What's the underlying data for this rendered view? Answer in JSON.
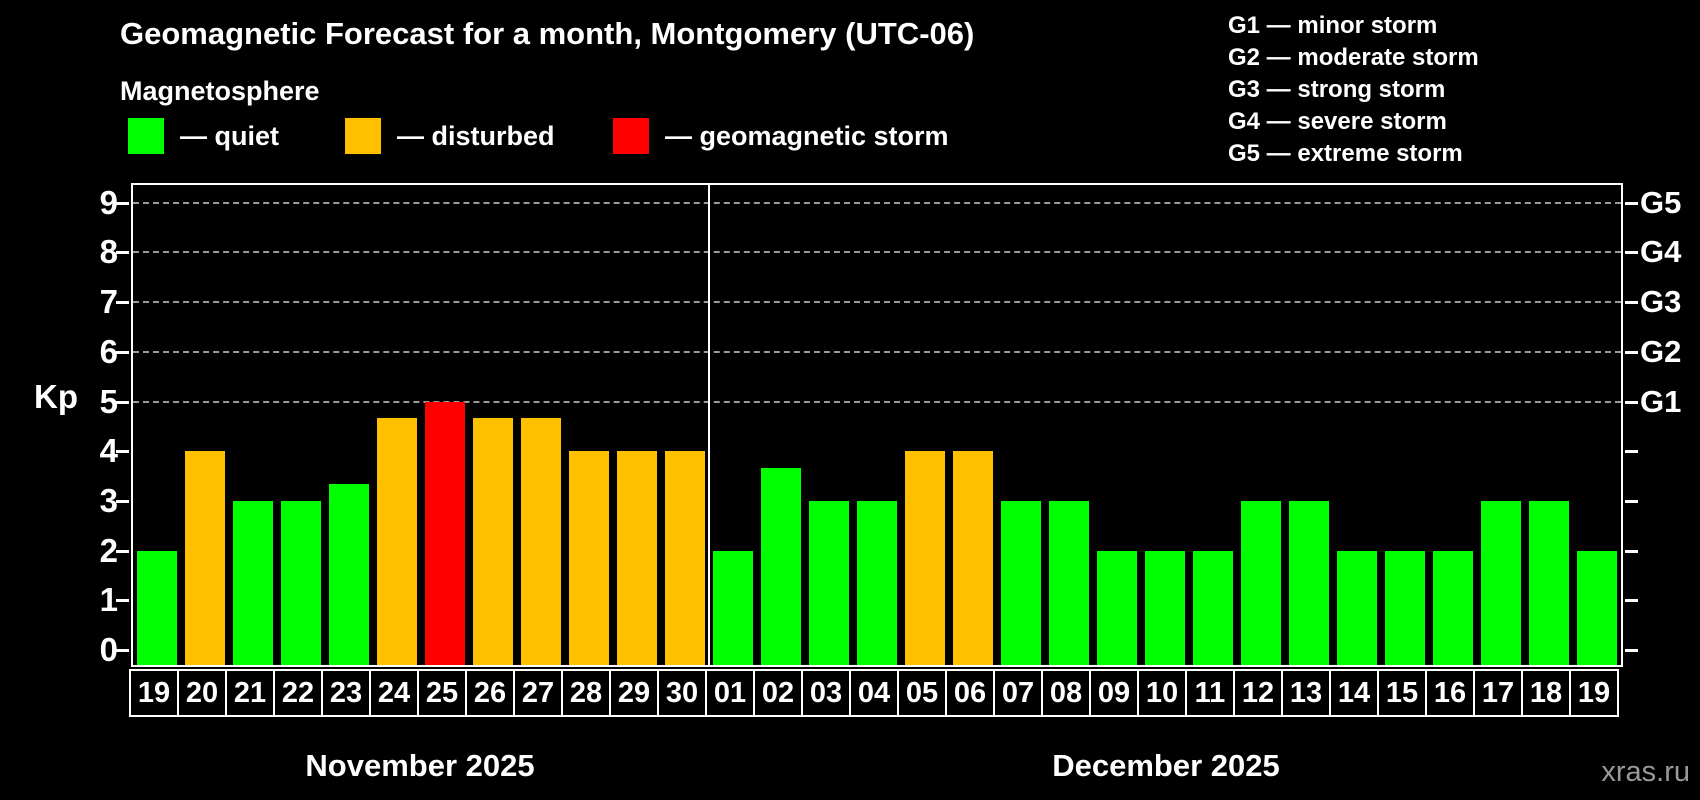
{
  "title": "Geomagnetic Forecast for a month, Montgomery (UTC-06)",
  "subtitle": "Magnetosphere",
  "legend": {
    "items": [
      {
        "label": "— quiet",
        "status": "quiet"
      },
      {
        "label": "— disturbed",
        "status": "disturbed"
      },
      {
        "label": "— geomagnetic storm",
        "status": "storm"
      }
    ]
  },
  "g_scale_legend": {
    "lines": [
      "G1 — minor storm",
      "G2 — moderate storm",
      "G3 — strong storm",
      "G4 — severe storm",
      "G5 — extreme storm"
    ]
  },
  "watermark": "xras.ru",
  "colors": {
    "quiet": "#00ff00",
    "disturbed": "#ffc000",
    "storm": "#ff0000",
    "axis": "#ffffff",
    "gridline": "#9a9a9a",
    "watermark": "#999999"
  },
  "chart_data": {
    "type": "bar",
    "ylabel": "Kp",
    "ylim": [
      -0.35,
      9.4
    ],
    "y_ticks": [
      0,
      1,
      2,
      3,
      4,
      5,
      6,
      7,
      8,
      9
    ],
    "gridlines_at": [
      5,
      6,
      7,
      8,
      9
    ],
    "right_axis_labels": [
      {
        "kp": 5,
        "label": "G1"
      },
      {
        "kp": 6,
        "label": "G2"
      },
      {
        "kp": 7,
        "label": "G3"
      },
      {
        "kp": 8,
        "label": "G4"
      },
      {
        "kp": 9,
        "label": "G5"
      }
    ],
    "months": [
      {
        "label": "November 2025",
        "days_count": 12
      },
      {
        "label": "December 2025",
        "days_count": 19
      }
    ],
    "days": [
      {
        "day": "19",
        "kp": 2.0,
        "status": "quiet"
      },
      {
        "day": "20",
        "kp": 4.0,
        "status": "disturbed"
      },
      {
        "day": "21",
        "kp": 3.0,
        "status": "quiet"
      },
      {
        "day": "22",
        "kp": 3.0,
        "status": "quiet"
      },
      {
        "day": "23",
        "kp": 3.33,
        "status": "quiet"
      },
      {
        "day": "24",
        "kp": 4.67,
        "status": "disturbed"
      },
      {
        "day": "25",
        "kp": 5.0,
        "status": "storm"
      },
      {
        "day": "26",
        "kp": 4.67,
        "status": "disturbed"
      },
      {
        "day": "27",
        "kp": 4.67,
        "status": "disturbed"
      },
      {
        "day": "28",
        "kp": 4.0,
        "status": "disturbed"
      },
      {
        "day": "29",
        "kp": 4.0,
        "status": "disturbed"
      },
      {
        "day": "30",
        "kp": 4.0,
        "status": "disturbed"
      },
      {
        "day": "01",
        "kp": 2.0,
        "status": "quiet"
      },
      {
        "day": "02",
        "kp": 3.67,
        "status": "quiet"
      },
      {
        "day": "03",
        "kp": 3.0,
        "status": "quiet"
      },
      {
        "day": "04",
        "kp": 3.0,
        "status": "quiet"
      },
      {
        "day": "05",
        "kp": 4.0,
        "status": "disturbed"
      },
      {
        "day": "06",
        "kp": 4.0,
        "status": "disturbed"
      },
      {
        "day": "07",
        "kp": 3.0,
        "status": "quiet"
      },
      {
        "day": "08",
        "kp": 3.0,
        "status": "quiet"
      },
      {
        "day": "09",
        "kp": 2.0,
        "status": "quiet"
      },
      {
        "day": "10",
        "kp": 2.0,
        "status": "quiet"
      },
      {
        "day": "11",
        "kp": 2.0,
        "status": "quiet"
      },
      {
        "day": "12",
        "kp": 3.0,
        "status": "quiet"
      },
      {
        "day": "13",
        "kp": 3.0,
        "status": "quiet"
      },
      {
        "day": "14",
        "kp": 2.0,
        "status": "quiet"
      },
      {
        "day": "15",
        "kp": 2.0,
        "status": "quiet"
      },
      {
        "day": "16",
        "kp": 2.0,
        "status": "quiet"
      },
      {
        "day": "17",
        "kp": 3.0,
        "status": "quiet"
      },
      {
        "day": "18",
        "kp": 3.0,
        "status": "quiet"
      },
      {
        "day": "19",
        "kp": 2.0,
        "status": "quiet"
      }
    ]
  }
}
